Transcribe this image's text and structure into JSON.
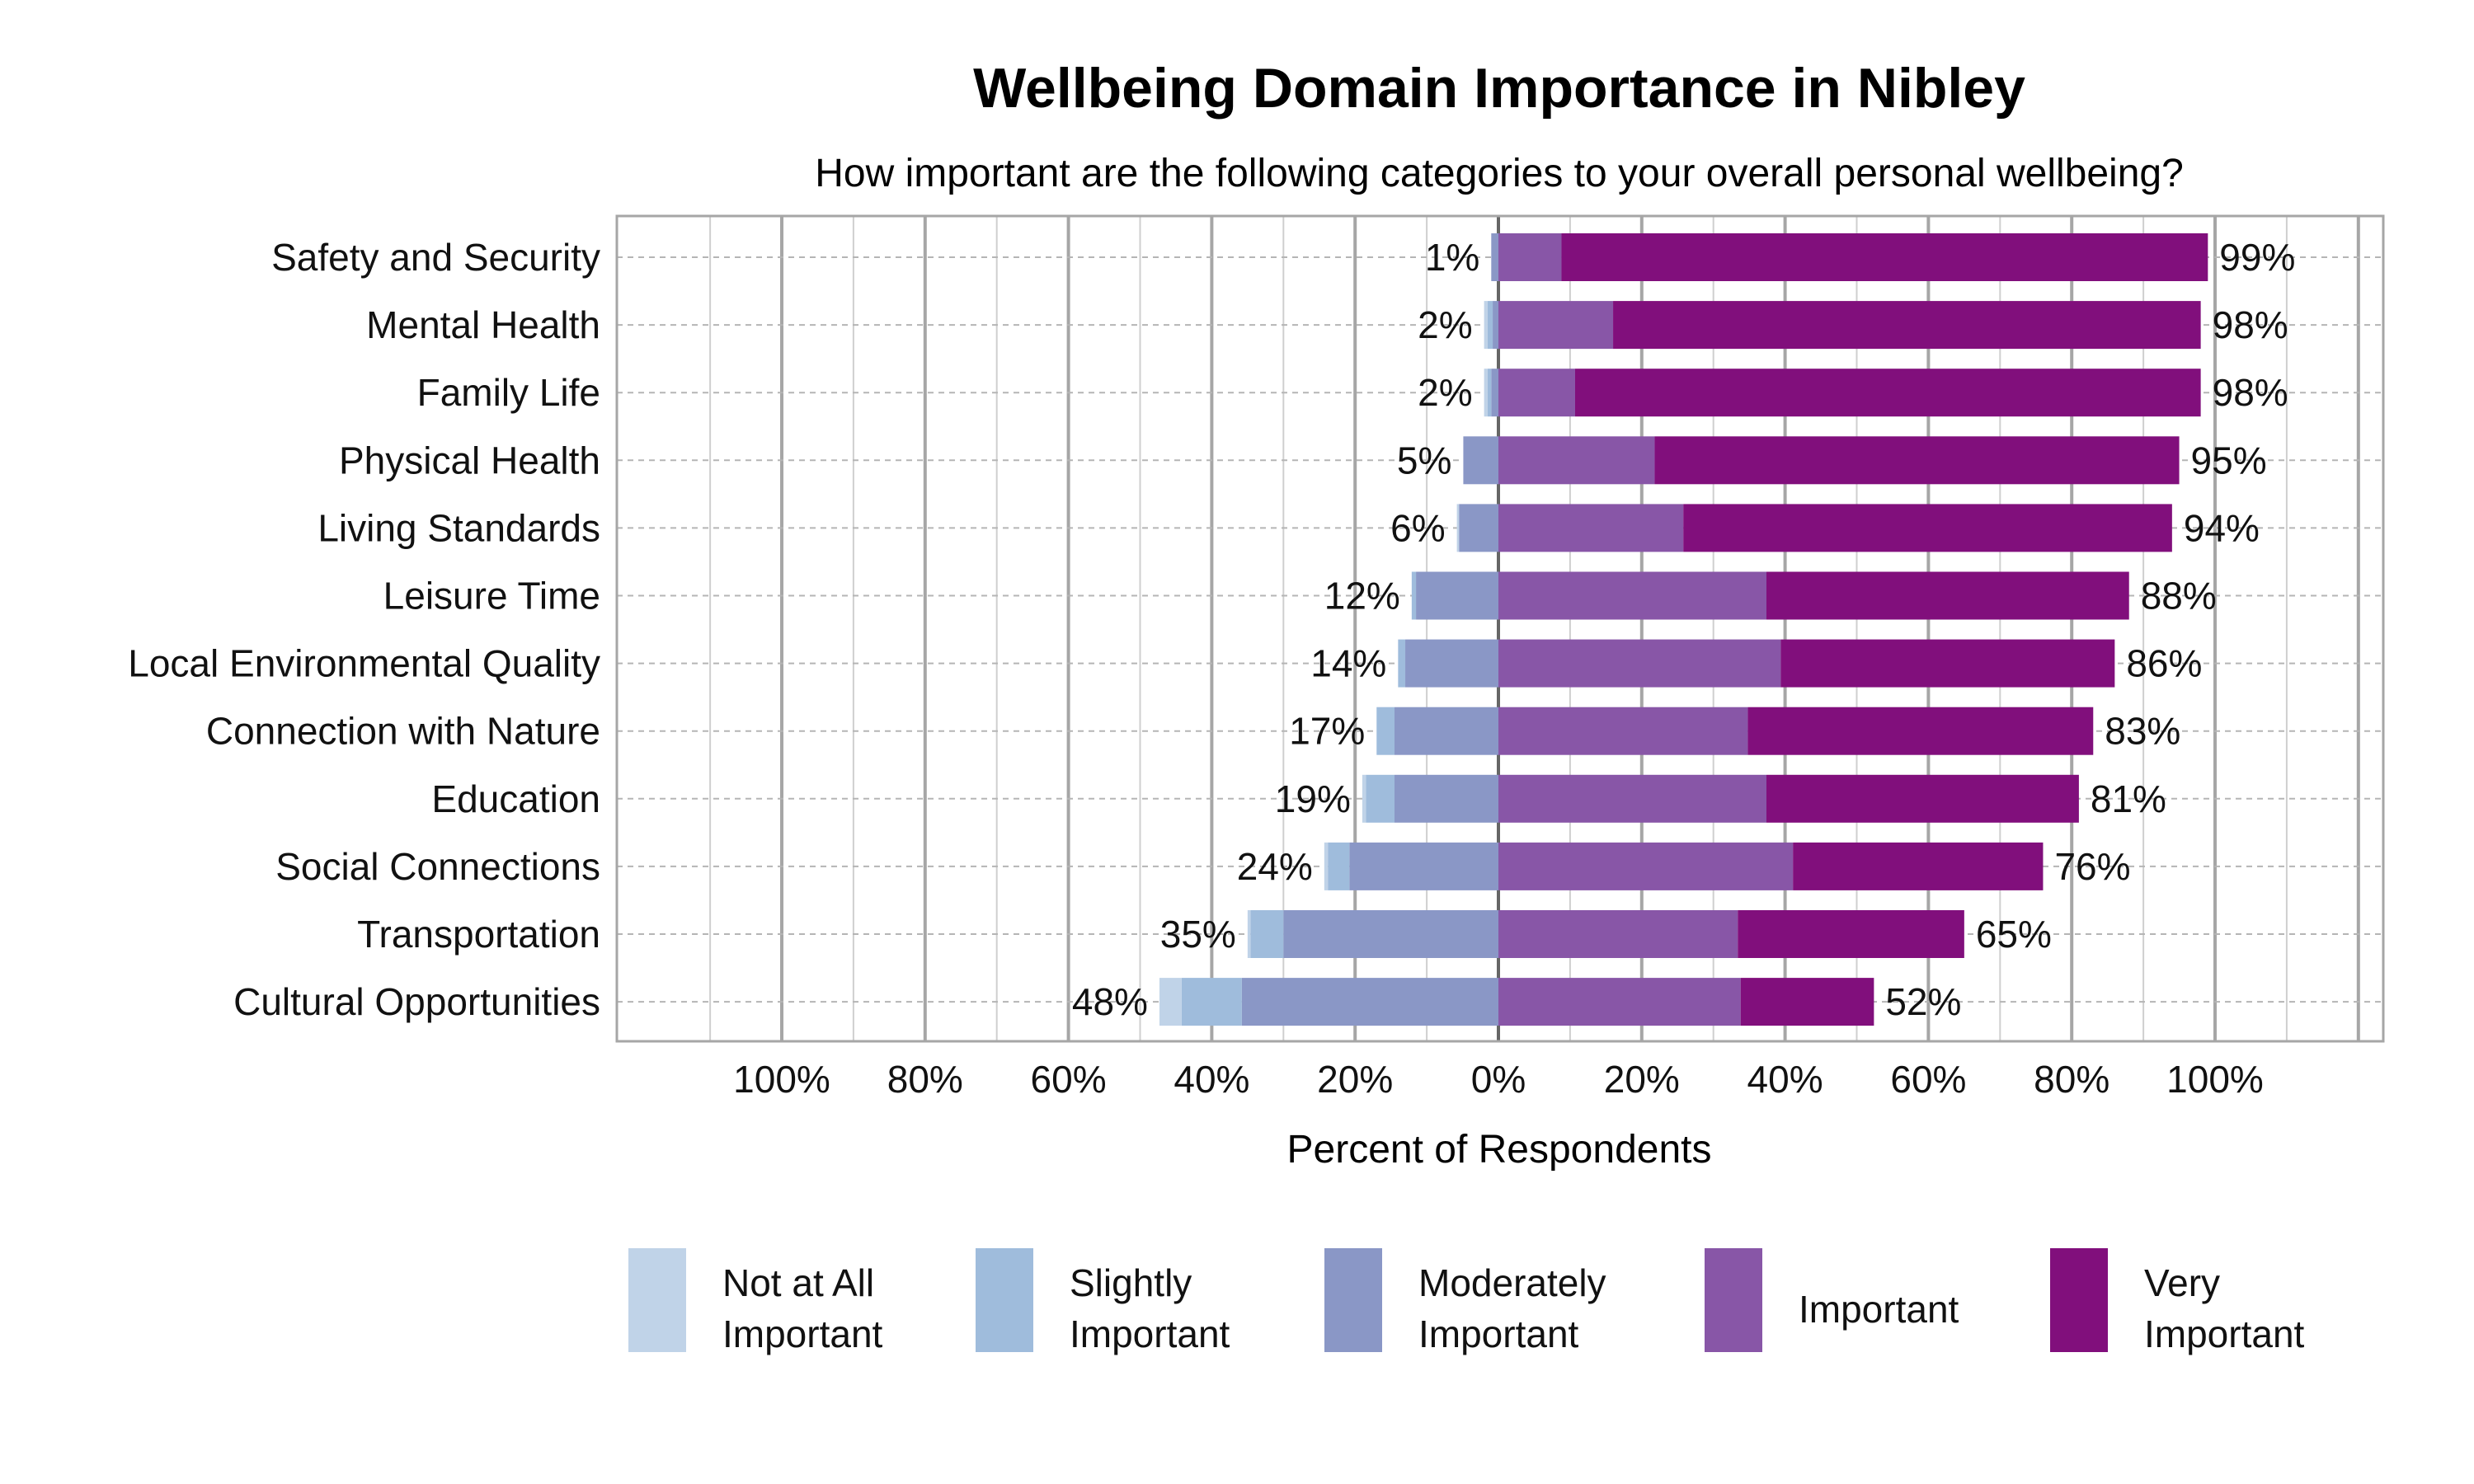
{
  "chart_data": {
    "type": "bar",
    "orientation": "horizontal",
    "stacked": "diverging",
    "title": "Wellbeing Domain Importance in Nibley",
    "subtitle": "How important are the following categories to your overall personal wellbeing?",
    "xlabel": "Percent of Respondents",
    "ylabel": "",
    "xlim": [
      -120,
      120
    ],
    "x_ticks": [
      "100%",
      "80%",
      "60%",
      "40%",
      "20%",
      "0%",
      "20%",
      "40%",
      "60%",
      "80%",
      "100%"
    ],
    "x_tick_values": [
      -100,
      -80,
      -60,
      -40,
      -20,
      0,
      20,
      40,
      60,
      80,
      100
    ],
    "grid": true,
    "legend_position": "bottom",
    "categories": [
      "Safety and Security",
      "Mental Health",
      "Family Life",
      "Physical Health",
      "Living Standards",
      "Leisure Time",
      "Local Environmental Quality",
      "Connection with Nature",
      "Education",
      "Social Connections",
      "Transportation",
      "Cultural Opportunities"
    ],
    "series": [
      {
        "name": "Not at All Important",
        "side": "negative",
        "color": "#c0d3e8",
        "values": [
          0,
          0.5,
          0.5,
          0,
          0.3,
          0,
          0,
          0,
          0.5,
          0.5,
          0.4,
          3.1
        ]
      },
      {
        "name": "Slightly Important",
        "side": "negative",
        "color": "#9fbcdc",
        "values": [
          0,
          0.7,
          0.5,
          0,
          0,
          0.6,
          1,
          2.5,
          4,
          3,
          4.6,
          8.4
        ]
      },
      {
        "name": "Moderately Important",
        "side": "negative",
        "color": "#8a97c6",
        "values": [
          1,
          0.8,
          1,
          4.9,
          5.5,
          11.5,
          13,
          14.5,
          14.5,
          20.8,
          30,
          35.8
        ]
      },
      {
        "name": "Important",
        "side": "positive",
        "color": "#8856a7",
        "values": [
          8.8,
          16,
          10.7,
          21.8,
          25.8,
          37.4,
          39.4,
          34.8,
          37.4,
          41.1,
          33.4,
          33.8
        ]
      },
      {
        "name": "Very Important",
        "side": "positive",
        "color": "#810f7c",
        "values": [
          90.2,
          82,
          87.3,
          73.2,
          68.2,
          50.6,
          46.6,
          48.2,
          43.6,
          34.9,
          31.6,
          18.6
        ]
      }
    ],
    "neg_labels": [
      "1%",
      "2%",
      "2%",
      "5%",
      "6%",
      "12%",
      "14%",
      "17%",
      "19%",
      "24%",
      "35%",
      "48%"
    ],
    "pos_labels": [
      "99%",
      "98%",
      "98%",
      "95%",
      "94%",
      "88%",
      "86%",
      "83%",
      "81%",
      "76%",
      "65%",
      "52%"
    ],
    "legend": [
      {
        "line1": "Not at All",
        "line2": "Important"
      },
      {
        "line1": "Slightly",
        "line2": "Important"
      },
      {
        "line1": "Moderately",
        "line2": "Important"
      },
      {
        "line1": "Important",
        "line2": ""
      },
      {
        "line1": "Very",
        "line2": "Important"
      }
    ]
  }
}
